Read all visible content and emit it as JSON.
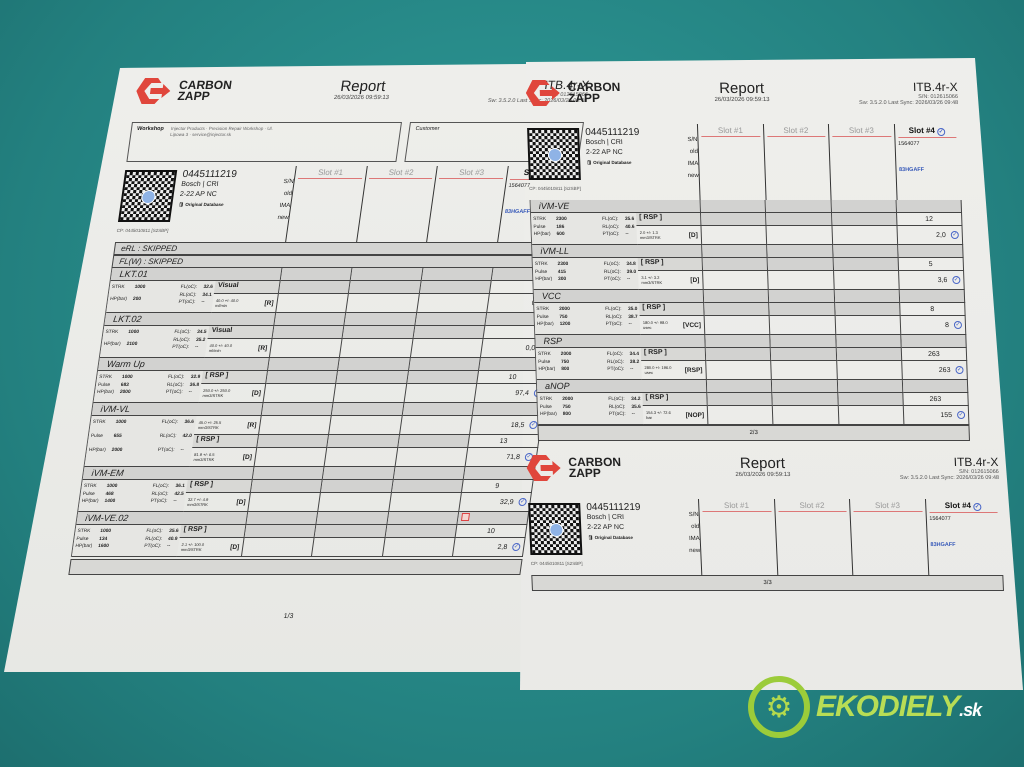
{
  "brand": {
    "name_line1": "CARBON",
    "name_line2": "ZAPP",
    "color": "#e0463c"
  },
  "report": {
    "title": "Report",
    "datetime": "26/03/2026 09:59:13",
    "device": "ITB.4r-X",
    "device_sn": "S/N: 012615066",
    "sw": "Sw: 3.5.2.0 Last Sync: 2026/03/26 09:48"
  },
  "workshop": {
    "label": "Workshop",
    "lines": "Injector Products · Precision Repair Workshop · Ul. Lipowa 3 · service@injector.sk"
  },
  "customer": {
    "label": "Customer"
  },
  "injector": {
    "part": "0445111219",
    "make": "Bosch | CRI",
    "code": "2-22 AP NC",
    "db": "Original Database",
    "cp": "CP: 0445010811 [S2SBP]",
    "sn_label": "S/N",
    "old_label": "old",
    "ima_label": "IMA",
    "new_label": "new"
  },
  "slots": [
    "Slot #1",
    "Slot #2",
    "Slot #3",
    "Slot #4"
  ],
  "slot4": {
    "sn": "1564077",
    "ima": "83HGAFF"
  },
  "pages": [
    {
      "skipped": [
        "eRL : SKIPPED",
        "FL(W) : SKIPPED"
      ],
      "page": "1/3",
      "tests": [
        {
          "name": "LKT.01",
          "params": [
            [
              "STRK",
              "1000"
            ],
            [
              "HP(bar)",
              "200"
            ]
          ],
          "temps": [
            [
              "FL(oC):",
              "32.6"
            ],
            [
              "RL(oC):",
              "34.1"
            ],
            [
              "PT(oC):",
              "--"
            ]
          ],
          "rows": [
            {
              "label": "Visual",
              "value": "",
              "check": true
            },
            {
              "range": "40.0 +/- 40.0",
              "unit": "ml/min",
              "type": "[R]",
              "value": "0,0",
              "check": true
            }
          ]
        },
        {
          "name": "LKT.02",
          "params": [
            [
              "STRK",
              "1000"
            ],
            [
              "HP(bar)",
              "2100"
            ]
          ],
          "temps": [
            [
              "FL(oC):",
              "34.5"
            ],
            [
              "RL(oC):",
              "35.2"
            ],
            [
              "PT(oC):",
              "--"
            ]
          ],
          "rows": [
            {
              "label": "Visual",
              "value": "",
              "check": true
            },
            {
              "range": "40.0 +/- 40.0",
              "unit": "ml/min",
              "type": "[R]",
              "value": "0,0",
              "check": true
            }
          ]
        },
        {
          "name": "Warm Up",
          "params": [
            [
              "STRK",
              "1000"
            ],
            [
              "Pulse",
              "683"
            ],
            [
              "HP(bar)",
              "2000"
            ]
          ],
          "temps": [
            [
              "FL(oC):",
              "32.9"
            ],
            [
              "RL(oC):",
              "36.8"
            ],
            [
              "PT(oC):",
              "--"
            ]
          ],
          "rows": [
            {
              "label": "[ RSP ]",
              "value": "10"
            },
            {
              "range": "250.0 +/- 250.0",
              "unit": "mm3/STRK",
              "type": "[D]",
              "value": "97,4",
              "check": true
            }
          ]
        },
        {
          "name": "iVM-VL",
          "params": [
            [
              "STRK",
              "1000"
            ],
            [
              "Pulse",
              "655"
            ],
            [
              "HP(bar)",
              "2000"
            ]
          ],
          "temps": [
            [
              "FL(oC):",
              "36.6"
            ],
            [
              "RL(oC):",
              "42.0"
            ],
            [
              "PT(oC):",
              "--"
            ]
          ],
          "rows": [
            {
              "range": "45.0 +/- 25.5",
              "unit": "mm3/STRK",
              "type": "[R]",
              "value": "18,5",
              "check": true
            },
            {
              "label": "[ RSP ]",
              "value": "13"
            },
            {
              "range": "81.9 +/- 6.5",
              "unit": "mm3/STRK",
              "type": "[D]",
              "value": "71,8",
              "check": true
            }
          ]
        },
        {
          "name": "iVM-EM",
          "params": [
            [
              "STRK",
              "1000"
            ],
            [
              "Pulse",
              "468"
            ],
            [
              "HP(bar)",
              "1400"
            ]
          ],
          "temps": [
            [
              "FL(oC):",
              "36.1"
            ],
            [
              "RL(oC):",
              "42.5"
            ],
            [
              "PT(oC):",
              "--"
            ]
          ],
          "rows": [
            {
              "label": "[ RSP ]",
              "value": "9"
            },
            {
              "range": "32.7 +/- 4.9",
              "unit": "mm3/STRK",
              "type": "[D]",
              "value": "32,9",
              "check": true
            }
          ]
        },
        {
          "name": "iVM-VE.02",
          "warn": true,
          "params": [
            [
              "STRK",
              "1000"
            ],
            [
              "Pulse",
              "134"
            ],
            [
              "HP(bar)",
              "1600"
            ]
          ],
          "temps": [
            [
              "FL(oC):",
              "35.6"
            ],
            [
              "RL(oC):",
              "40.9"
            ],
            [
              "PT(oC):",
              "--"
            ]
          ],
          "rows": [
            {
              "label": "[ RSP ]",
              "value": "10"
            },
            {
              "range": "2.1 +/- 100.0",
              "unit": "mm3/STRK",
              "type": "[D]",
              "value": "2,8",
              "check": true
            }
          ]
        }
      ]
    },
    {
      "skipped": [],
      "page": "2/3",
      "tests": [
        {
          "name": "iVM-VE",
          "params": [
            [
              "STRK",
              "2300"
            ],
            [
              "Pulse",
              "186"
            ],
            [
              "HP(bar)",
              "600"
            ]
          ],
          "temps": [
            [
              "FL(oC):",
              "35.6"
            ],
            [
              "RL(oC):",
              "40.6"
            ],
            [
              "PT(oC):",
              "--"
            ]
          ],
          "rows": [
            {
              "label": "[ RSP ]",
              "value": "12"
            },
            {
              "range": "2.0 +/- 1.3",
              "unit": "mm3/STRK",
              "type": "[D]",
              "value": "2,0",
              "check": true
            }
          ]
        },
        {
          "name": "iVM-LL",
          "params": [
            [
              "STRK",
              "2300"
            ],
            [
              "Pulse",
              "415"
            ],
            [
              "HP(bar)",
              "300"
            ]
          ],
          "temps": [
            [
              "FL(oC):",
              "34.8"
            ],
            [
              "RL(oC):",
              "39.0"
            ],
            [
              "PT(oC):",
              "--"
            ]
          ],
          "rows": [
            {
              "label": "[ RSP ]",
              "value": "5"
            },
            {
              "range": "3.1 +/- 3.2",
              "unit": "mm3/STRK",
              "type": "[D]",
              "value": "3,6",
              "check": true
            }
          ]
        },
        {
          "name": "VCC",
          "params": [
            [
              "STRK",
              "2000"
            ],
            [
              "Pulse",
              "750"
            ],
            [
              "HP(bar)",
              "1200"
            ]
          ],
          "temps": [
            [
              "FL(oC):",
              "35.0"
            ],
            [
              "RL(oC):",
              "38.7"
            ],
            [
              "PT(oC):",
              "--"
            ]
          ],
          "rows": [
            {
              "label": "[ RSP ]",
              "value": "8"
            },
            {
              "range": "180.0 +/- 98.0",
              "unit": "usec",
              "type": "[VCC]",
              "value": "8",
              "check": true
            }
          ]
        },
        {
          "name": "RSP",
          "params": [
            [
              "STRK",
              "2000"
            ],
            [
              "Pulse",
              "750"
            ],
            [
              "HP(bar)",
              "800"
            ]
          ],
          "temps": [
            [
              "FL(oC):",
              "34.4"
            ],
            [
              "RL(oC):",
              "38.2"
            ],
            [
              "PT(oC):",
              "--"
            ]
          ],
          "rows": [
            {
              "label": "[ RSP ]",
              "value": "263"
            },
            {
              "range": "280.0 +/- 196.0",
              "unit": "usec",
              "type": "[RSP]",
              "value": "263",
              "check": true
            }
          ]
        },
        {
          "name": "aNOP",
          "params": [
            [
              "STRK",
              "2000"
            ],
            [
              "Pulse",
              "750"
            ],
            [
              "HP(bar)",
              "800"
            ]
          ],
          "temps": [
            [
              "FL(oC):",
              "34.2"
            ],
            [
              "RL(oC):",
              "35.6"
            ],
            [
              "PT(oC):",
              "--"
            ]
          ],
          "rows": [
            {
              "label": "[ RSP ]",
              "value": "263"
            },
            {
              "range": "154.3 +/- 72.6",
              "unit": "bar",
              "type": "[NOP]",
              "value": "155",
              "check": true
            }
          ]
        }
      ]
    },
    {
      "skipped": [],
      "page": "3/3",
      "tests": []
    }
  ],
  "watermark": {
    "text": "EKODIELY",
    "tld": ".sk",
    "color": "#b8dd55"
  },
  "icons": {
    "check": "check-circle-icon",
    "warn": "warning-icon",
    "db": "database-icon"
  }
}
